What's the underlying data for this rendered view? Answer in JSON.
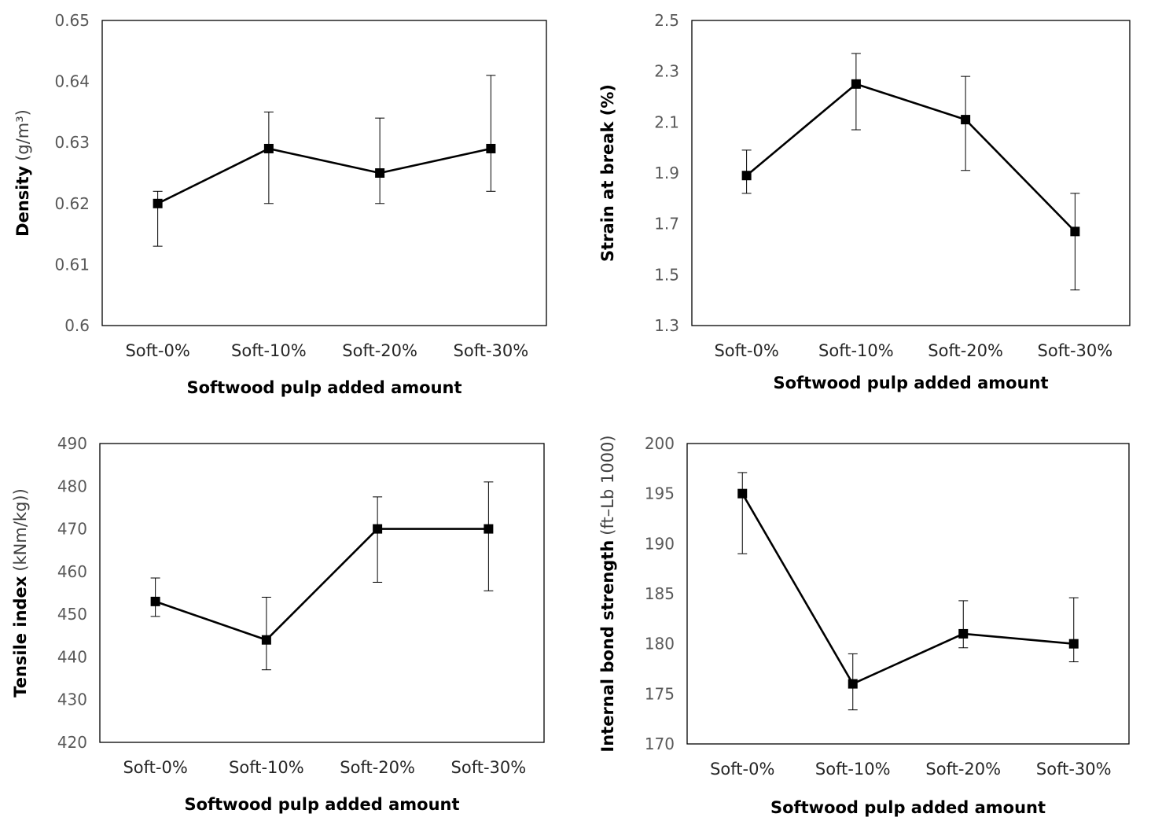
{
  "chart_data": [
    {
      "type": "line",
      "categories": [
        "Soft-0%",
        "Soft-10%",
        "Soft-20%",
        "Soft-30%"
      ],
      "values": [
        0.62,
        0.629,
        0.625,
        0.629
      ],
      "error_low": [
        0.613,
        0.62,
        0.62,
        0.622
      ],
      "error_high": [
        0.622,
        0.635,
        0.634,
        0.641
      ],
      "ylim": [
        0.6,
        0.65
      ],
      "yticks": [
        "0.6",
        "0.61",
        "0.62",
        "0.63",
        "0.64",
        "0.65"
      ],
      "xlabel": "Softwood pulp added amount",
      "ylabel_bold": "Density",
      "ylabel_unit": "(g/m³)",
      "grid": false,
      "marker": "square",
      "line_color": "#000000"
    },
    {
      "type": "line",
      "categories": [
        "Soft-0%",
        "Soft-10%",
        "Soft-20%",
        "Soft-30%"
      ],
      "values": [
        1.89,
        2.25,
        2.11,
        1.67
      ],
      "error_low": [
        1.82,
        2.07,
        1.91,
        1.44
      ],
      "error_high": [
        1.99,
        2.37,
        2.28,
        1.82
      ],
      "ylim": [
        1.3,
        2.5
      ],
      "yticks": [
        "1.3",
        "1.5",
        "1.7",
        "1.9",
        "2.1",
        "2.3",
        "2.5"
      ],
      "xlabel": "Softwood pulp added amount",
      "ylabel_bold": "Strain at break (%)",
      "ylabel_unit": "",
      "grid": false,
      "marker": "square",
      "line_color": "#000000"
    },
    {
      "type": "line",
      "categories": [
        "Soft-0%",
        "Soft-10%",
        "Soft-20%",
        "Soft-30%"
      ],
      "values": [
        453,
        444,
        470,
        470
      ],
      "error_low": [
        449.5,
        437,
        457.5,
        455.5
      ],
      "error_high": [
        458.5,
        454,
        477.5,
        481
      ],
      "ylim": [
        420,
        490
      ],
      "yticks": [
        "420",
        "430",
        "440",
        "450",
        "460",
        "470",
        "480",
        "490"
      ],
      "xlabel": "Softwood pulp added amount",
      "ylabel_bold": "Tensile index",
      "ylabel_unit": "(kNm/kg))",
      "grid": false,
      "marker": "square",
      "line_color": "#000000"
    },
    {
      "type": "line",
      "categories": [
        "Soft-0%",
        "Soft-10%",
        "Soft-20%",
        "Soft-30%"
      ],
      "values": [
        195,
        176,
        181,
        180
      ],
      "error_low": [
        189,
        173.4,
        179.6,
        178.2
      ],
      "error_high": [
        197.1,
        179,
        184.3,
        184.6
      ],
      "ylim": [
        170,
        200
      ],
      "yticks": [
        "170",
        "175",
        "180",
        "185",
        "190",
        "195",
        "200"
      ],
      "xlabel": "Softwood pulp added amount",
      "ylabel_bold": "Internal bond strength",
      "ylabel_unit": "(ft–Lb 1000)",
      "grid": false,
      "marker": "square",
      "line_color": "#000000"
    }
  ]
}
